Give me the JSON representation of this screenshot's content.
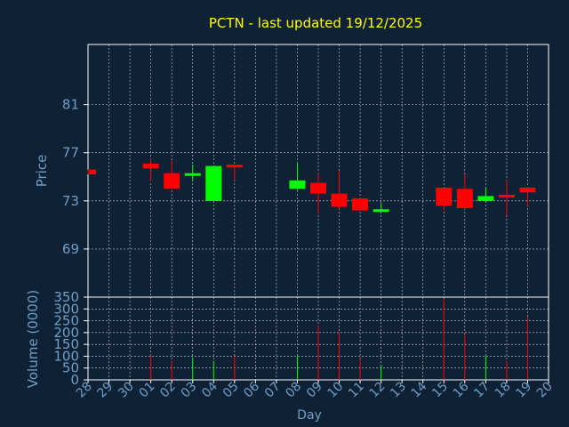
{
  "chart_data": {
    "type": "candlestick",
    "title": "PCTN - last updated 19/12/2025",
    "price_panel": {
      "ylabel": "Price",
      "ylim": [
        65,
        86
      ],
      "ticks": [
        69,
        73,
        77,
        81
      ]
    },
    "volume_panel": {
      "ylabel": "Volume (0000)",
      "ylim": [
        0,
        350
      ],
      "ticks": [
        0,
        50,
        100,
        150,
        200,
        250,
        300,
        350
      ]
    },
    "xlabel": "Day",
    "x_ticks": [
      "28",
      "29",
      "30",
      "01",
      "02",
      "03",
      "04",
      "05",
      "06",
      "07",
      "08",
      "09",
      "10",
      "11",
      "12",
      "13",
      "14",
      "15",
      "16",
      "17",
      "18",
      "19",
      "20"
    ],
    "candles": [
      {
        "day": "28",
        "open": 75.6,
        "close": 75.2,
        "high": 75.6,
        "low": 75.2,
        "volume": 0
      },
      {
        "day": "01",
        "open": 76.1,
        "close": 75.7,
        "high": 76.5,
        "low": 74.6,
        "volume": 105
      },
      {
        "day": "02",
        "open": 75.3,
        "close": 74.0,
        "high": 76.4,
        "low": 74.0,
        "volume": 80
      },
      {
        "day": "03",
        "open": 75.1,
        "close": 75.3,
        "high": 76.0,
        "low": 74.7,
        "volume": 95
      },
      {
        "day": "04",
        "open": 73.0,
        "close": 75.9,
        "high": 75.9,
        "low": 73.0,
        "volume": 80
      },
      {
        "day": "05",
        "open": 76.0,
        "close": 75.8,
        "high": 76.0,
        "low": 74.7,
        "volume": 100
      },
      {
        "day": "08",
        "open": 74.0,
        "close": 74.7,
        "high": 76.1,
        "low": 73.9,
        "volume": 100
      },
      {
        "day": "09",
        "open": 74.5,
        "close": 73.6,
        "high": 75.3,
        "low": 71.9,
        "volume": 230
      },
      {
        "day": "10",
        "open": 73.6,
        "close": 72.5,
        "high": 75.5,
        "low": 72.3,
        "volume": 200
      },
      {
        "day": "11",
        "open": 73.2,
        "close": 72.2,
        "high": 73.3,
        "low": 72.2,
        "volume": 90
      },
      {
        "day": "12",
        "open": 72.1,
        "close": 72.3,
        "high": 72.8,
        "low": 72.1,
        "volume": 60
      },
      {
        "day": "15",
        "open": 74.1,
        "close": 72.6,
        "high": 74.1,
        "low": 72.2,
        "volume": 340
      },
      {
        "day": "16",
        "open": 74.0,
        "close": 72.4,
        "high": 75.2,
        "low": 72.3,
        "volume": 190
      },
      {
        "day": "17",
        "open": 73.0,
        "close": 73.4,
        "high": 74.1,
        "low": 72.9,
        "volume": 100
      },
      {
        "day": "18",
        "open": 73.5,
        "close": 73.4,
        "high": 74.7,
        "low": 71.8,
        "volume": 80
      },
      {
        "day": "19",
        "open": 74.1,
        "close": 73.7,
        "high": 74.1,
        "low": 72.6,
        "volume": 265
      }
    ],
    "grid": true,
    "colors": {
      "background": "#0f2134",
      "axis": "#ffffff",
      "grid": "#ffffff",
      "up": "#00ff00",
      "down": "#ff0000",
      "title": "#ffff00",
      "label": "#6f9ec8"
    }
  }
}
